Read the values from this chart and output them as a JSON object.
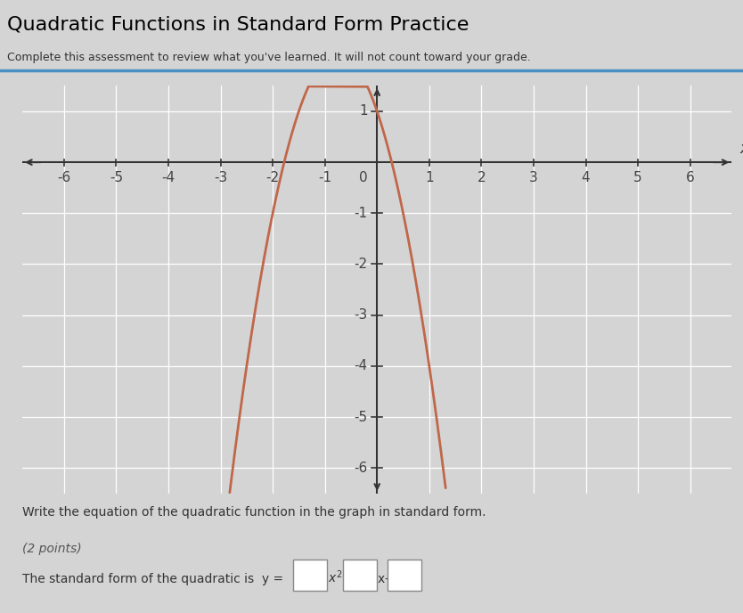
{
  "title": "Quadratic Functions in Standard Form Practice",
  "subtitle": "Complete this assessment to review what you've learned. It will not count toward your grade.",
  "question_text": "Write the equation of the quadratic function in the graph in standard form.",
  "points_text": "(2 points)",
  "curve_color": "#c0674a",
  "curve_linewidth": 2.0,
  "xlim": [
    -6.8,
    6.8
  ],
  "ylim": [
    -6.5,
    1.5
  ],
  "xticks": [
    -6,
    -5,
    -4,
    -3,
    -2,
    -1,
    0,
    1,
    2,
    3,
    4,
    5,
    6
  ],
  "yticks": [
    -6,
    -5,
    -4,
    -3,
    -2,
    -1,
    0,
    1
  ],
  "x_label": "x",
  "plot_bg_color": "#e8e8e8",
  "grid_color": "#ffffff",
  "sep_line_color": "#4a90c4",
  "quadratic_a": -2,
  "quadratic_b": -3,
  "quadratic_c": 1,
  "fig_width": 8.34,
  "fig_height": 6.88
}
